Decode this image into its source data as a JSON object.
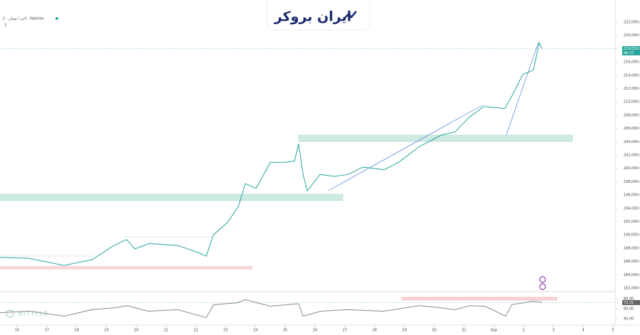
{
  "header": {
    "symbol": "تتر / تومان · 1h · Nobitex",
    "indicators": "2",
    "logo": "ایران بروکر",
    "watermark": "BITYCLE"
  },
  "chart_data": [
    {
      "type": "line",
      "color": "#26a69a",
      "x": [
        15.43,
        16.38,
        17.58,
        18.53,
        19.25,
        19.68,
        19.96,
        20.44,
        21.4,
        22.11,
        22.35,
        22.59,
        23.07,
        23.43,
        23.66,
        24.02,
        24.5,
        24.98,
        25.31,
        25.45,
        25.6,
        25.74,
        26.17,
        26.65,
        27.12,
        27.6,
        28.32,
        28.8,
        29.51,
        30.23,
        30.7,
        31.18,
        31.66,
        32.37,
        32.61,
        32.97,
        33.33,
        33.52,
        33.62
      ],
      "values": [
        186600,
        186500,
        185400,
        186300,
        188400,
        189300,
        187900,
        188700,
        188400,
        187300,
        186800,
        190000,
        191900,
        194300,
        197700,
        197000,
        200900,
        200900,
        201100,
        203700,
        199100,
        196600,
        199100,
        198800,
        199100,
        200200,
        199800,
        200900,
        203300,
        205000,
        205500,
        207700,
        209300,
        209000,
        210900,
        214100,
        214800,
        218900,
        218000
      ],
      "xlim": [
        15.43,
        36.07
      ],
      "ylim": [
        181470,
        225320
      ],
      "yticks": [
        {
          "value": 182000,
          "label": "182,000.00"
        },
        {
          "value": 184000,
          "label": "184,000.00"
        },
        {
          "value": 186000,
          "label": "186,000.00"
        },
        {
          "value": 188000,
          "label": "188,000.00"
        },
        {
          "value": 190000,
          "label": "190,000.00"
        },
        {
          "value": 192000,
          "label": "192,000.00"
        },
        {
          "value": 194000,
          "label": "194,000.00"
        },
        {
          "value": 196000,
          "label": "196,000.00"
        },
        {
          "value": 198000,
          "label": "198,000.00"
        },
        {
          "value": 200000,
          "label": "200,000.00"
        },
        {
          "value": 202000,
          "label": "202,000.00"
        },
        {
          "value": 204000,
          "label": "204,000.00"
        },
        {
          "value": 206000,
          "label": "206,000.00"
        },
        {
          "value": 208000,
          "label": "208,000.00"
        },
        {
          "value": 210000,
          "label": "210,000.00"
        },
        {
          "value": 212000,
          "label": "212,000.00"
        },
        {
          "value": 214000,
          "label": "214,000.00"
        },
        {
          "value": 216000,
          "label": "216,000.00"
        },
        {
          "value": 218000,
          "label": "218,000.00"
        },
        {
          "value": 220000,
          "label": "220,000.00"
        },
        {
          "value": 222000,
          "label": "222,000.00"
        }
      ],
      "xticks": [
        16,
        17,
        18,
        19,
        20,
        21,
        22,
        23,
        24,
        25,
        26,
        27,
        28,
        29,
        30,
        31,
        {
          "value": 32,
          "label": "Sep"
        },
        {
          "value": 33,
          "label": "2"
        },
        {
          "value": 34,
          "label": "3"
        },
        {
          "value": 35,
          "label": "4"
        },
        {
          "value": 36,
          "label": "5"
        }
      ],
      "current": {
        "value": 218010,
        "label": "218,010.00",
        "countdown": "46:37"
      }
    },
    {
      "type": "line",
      "color": "#888888",
      "x": [
        15.43,
        16.4,
        17.6,
        18.5,
        19.3,
        19.7,
        20.4,
        21.4,
        22.35,
        22.6,
        23.4,
        23.66,
        24.5,
        25.45,
        25.6,
        26.2,
        27.1,
        28.3,
        29.5,
        30.2,
        30.7,
        31.2,
        31.7,
        32.4,
        32.6,
        33.3,
        33.52,
        33.62
      ],
      "values": [
        52,
        55,
        45,
        58,
        62,
        66,
        55,
        58,
        42,
        68,
        72,
        78,
        65,
        70,
        45,
        55,
        58,
        55,
        66,
        62,
        58,
        66,
        65,
        45,
        68,
        75,
        74,
        72.31
      ],
      "xlim": [
        15.43,
        36.07
      ],
      "ylim": [
        30,
        94.3
      ],
      "yticks": [
        {
          "value": 80,
          "label": "80.00"
        },
        {
          "value": 60,
          "label": "60.00"
        },
        {
          "value": 40,
          "label": "40.00"
        }
      ],
      "current": {
        "value": 72.31,
        "label": "72.31"
      }
    }
  ]
}
